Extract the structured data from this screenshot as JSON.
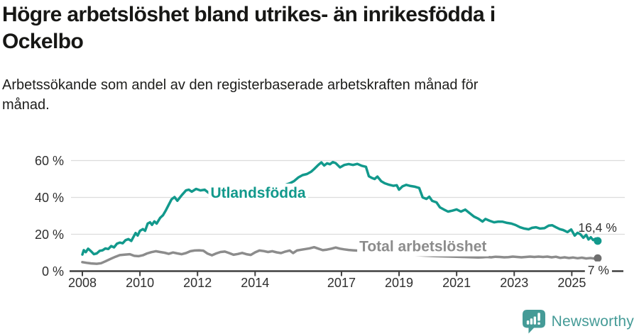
{
  "header": {
    "title": "Högre arbetslöshet bland utrikes- än inrikesfödda i\nOckelbo",
    "subtitle": "Arbetssökande som andel av den registerbaserade arbetskraften månad för\nmånad."
  },
  "footer": {
    "brand": "Newsworthy"
  },
  "colors": {
    "teal": "#12998c",
    "gray_line": "#8c8c8c",
    "gray_dot": "#6f6f6f",
    "grid": "#dcdcdc",
    "axis": "#404040",
    "tick_text": "#2e2e2e",
    "end_label_text": "#333333",
    "brand_teal": "#459b97"
  },
  "chart_data": {
    "type": "line",
    "title": "Högre arbetslöshet bland utrikes- än inrikesfödda i Ockelbo",
    "subtitle": "Arbetssökande som andel av den registerbaserade arbetskraften månad för månad.",
    "ylabel": "",
    "xlabel": "",
    "ylim": [
      0,
      65
    ],
    "x_range": [
      2008,
      2025.9
    ],
    "grid": "horizontal",
    "y_ticks": [
      {
        "value": 0,
        "label": "0 %"
      },
      {
        "value": 20,
        "label": "20 %"
      },
      {
        "value": 40,
        "label": "40 %"
      },
      {
        "value": 60,
        "label": "60 %"
      }
    ],
    "x_ticks": [
      {
        "value": 2008,
        "label": "2008"
      },
      {
        "value": 2010,
        "label": "2010"
      },
      {
        "value": 2012,
        "label": "2012"
      },
      {
        "value": 2014,
        "label": "2014"
      },
      {
        "value": 2017,
        "label": "2017"
      },
      {
        "value": 2019,
        "label": "2019"
      },
      {
        "value": 2021,
        "label": "2021"
      },
      {
        "value": 2023,
        "label": "2023"
      },
      {
        "value": 2025,
        "label": "2025"
      }
    ],
    "series": [
      {
        "id": "utlandsfodda",
        "name": "Utlandsfödda",
        "color": "#12998c",
        "dot_color": "#12998c",
        "end_label": "16,4 %",
        "end_label_pos": "above",
        "label_anchor": {
          "year": 2012.45,
          "value": 42.5
        },
        "points": [
          [
            2008.0,
            9.0
          ],
          [
            2008.05,
            11.4
          ],
          [
            2008.12,
            10.3
          ],
          [
            2008.2,
            12.2
          ],
          [
            2008.3,
            10.8
          ],
          [
            2008.4,
            9.2
          ],
          [
            2008.5,
            9.6
          ],
          [
            2008.6,
            11.0
          ],
          [
            2008.7,
            11.3
          ],
          [
            2008.8,
            12.3
          ],
          [
            2008.9,
            12.0
          ],
          [
            2009.0,
            13.6
          ],
          [
            2009.1,
            12.9
          ],
          [
            2009.2,
            14.9
          ],
          [
            2009.3,
            15.5
          ],
          [
            2009.4,
            15.1
          ],
          [
            2009.5,
            16.8
          ],
          [
            2009.6,
            17.4
          ],
          [
            2009.7,
            16.4
          ],
          [
            2009.8,
            19.3
          ],
          [
            2009.85,
            20.7
          ],
          [
            2009.92,
            19.3
          ],
          [
            2010.0,
            21.9
          ],
          [
            2010.1,
            22.8
          ],
          [
            2010.18,
            21.9
          ],
          [
            2010.27,
            25.8
          ],
          [
            2010.35,
            26.5
          ],
          [
            2010.42,
            25.1
          ],
          [
            2010.5,
            27.0
          ],
          [
            2010.58,
            25.8
          ],
          [
            2010.7,
            28.9
          ],
          [
            2010.8,
            30.3
          ],
          [
            2010.9,
            33.0
          ],
          [
            2011.0,
            36.0
          ],
          [
            2011.1,
            39.0
          ],
          [
            2011.2,
            40.2
          ],
          [
            2011.3,
            38.2
          ],
          [
            2011.45,
            41.2
          ],
          [
            2011.6,
            43.8
          ],
          [
            2011.7,
            44.2
          ],
          [
            2011.8,
            43.1
          ],
          [
            2011.95,
            44.6
          ],
          [
            2012.1,
            43.8
          ],
          [
            2012.25,
            44.2
          ],
          [
            2012.4,
            42.3
          ],
          [
            2012.55,
            43.5
          ],
          [
            2012.7,
            42.2
          ],
          [
            2012.9,
            43.5
          ],
          [
            2013.1,
            44.6
          ],
          [
            2013.3,
            43.6
          ],
          [
            2013.5,
            42.4
          ],
          [
            2013.7,
            41.2
          ],
          [
            2013.9,
            41.8
          ],
          [
            2014.1,
            43.0
          ],
          [
            2014.3,
            42.2
          ],
          [
            2014.5,
            43.3
          ],
          [
            2014.7,
            44.4
          ],
          [
            2014.9,
            45.6
          ],
          [
            2015.05,
            46.8
          ],
          [
            2015.2,
            47.6
          ],
          [
            2015.35,
            48.8
          ],
          [
            2015.5,
            50.8
          ],
          [
            2015.65,
            52.1
          ],
          [
            2015.8,
            52.7
          ],
          [
            2015.95,
            54.0
          ],
          [
            2016.05,
            55.4
          ],
          [
            2016.2,
            57.7
          ],
          [
            2016.3,
            59.0
          ],
          [
            2016.4,
            57.3
          ],
          [
            2016.5,
            58.5
          ],
          [
            2016.6,
            58.0
          ],
          [
            2016.7,
            59.2
          ],
          [
            2016.8,
            58.6
          ],
          [
            2016.95,
            56.3
          ],
          [
            2017.1,
            57.6
          ],
          [
            2017.25,
            58.1
          ],
          [
            2017.4,
            57.6
          ],
          [
            2017.55,
            58.2
          ],
          [
            2017.7,
            57.2
          ],
          [
            2017.85,
            56.6
          ],
          [
            2017.95,
            51.5
          ],
          [
            2018.05,
            50.6
          ],
          [
            2018.15,
            50.0
          ],
          [
            2018.25,
            51.3
          ],
          [
            2018.38,
            48.8
          ],
          [
            2018.5,
            47.7
          ],
          [
            2018.65,
            46.9
          ],
          [
            2018.8,
            46.3
          ],
          [
            2018.92,
            46.6
          ],
          [
            2019.0,
            44.2
          ],
          [
            2019.12,
            46.0
          ],
          [
            2019.25,
            46.8
          ],
          [
            2019.4,
            46.2
          ],
          [
            2019.55,
            45.8
          ],
          [
            2019.7,
            45.1
          ],
          [
            2019.82,
            40.0
          ],
          [
            2019.95,
            39.2
          ],
          [
            2020.05,
            40.4
          ],
          [
            2020.15,
            38.1
          ],
          [
            2020.3,
            37.3
          ],
          [
            2020.42,
            34.6
          ],
          [
            2020.55,
            33.5
          ],
          [
            2020.7,
            32.3
          ],
          [
            2020.85,
            32.8
          ],
          [
            2021.0,
            33.5
          ],
          [
            2021.15,
            32.3
          ],
          [
            2021.3,
            33.4
          ],
          [
            2021.45,
            31.5
          ],
          [
            2021.6,
            29.6
          ],
          [
            2021.75,
            28.5
          ],
          [
            2021.9,
            26.9
          ],
          [
            2022.0,
            28.3
          ],
          [
            2022.15,
            27.3
          ],
          [
            2022.3,
            26.5
          ],
          [
            2022.45,
            26.9
          ],
          [
            2022.6,
            26.8
          ],
          [
            2022.75,
            26.2
          ],
          [
            2022.9,
            25.8
          ],
          [
            2023.05,
            25.0
          ],
          [
            2023.2,
            23.8
          ],
          [
            2023.35,
            23.1
          ],
          [
            2023.5,
            22.7
          ],
          [
            2023.62,
            23.5
          ],
          [
            2023.75,
            23.8
          ],
          [
            2023.9,
            23.1
          ],
          [
            2024.05,
            23.3
          ],
          [
            2024.2,
            24.7
          ],
          [
            2024.32,
            24.9
          ],
          [
            2024.45,
            23.8
          ],
          [
            2024.58,
            22.8
          ],
          [
            2024.7,
            22.3
          ],
          [
            2024.85,
            21.2
          ],
          [
            2024.98,
            22.6
          ],
          [
            2025.1,
            19.3
          ],
          [
            2025.2,
            20.8
          ],
          [
            2025.3,
            20.0
          ],
          [
            2025.4,
            18.1
          ],
          [
            2025.5,
            19.7
          ],
          [
            2025.58,
            17.2
          ],
          [
            2025.66,
            18.4
          ],
          [
            2025.74,
            16.9
          ],
          [
            2025.82,
            17.6
          ],
          [
            2025.9,
            16.4
          ]
        ]
      },
      {
        "id": "total",
        "name": "Total arbetslöshet",
        "color": "#8c8c8c",
        "dot_color": "#6f6f6f",
        "end_label": "7 %",
        "end_label_pos": "below",
        "label_anchor": {
          "year": 2017.62,
          "value": 13.4
        },
        "points": [
          [
            2008.0,
            4.9
          ],
          [
            2008.15,
            4.5
          ],
          [
            2008.3,
            4.2
          ],
          [
            2008.5,
            4.0
          ],
          [
            2008.65,
            4.3
          ],
          [
            2008.8,
            5.3
          ],
          [
            2009.0,
            6.8
          ],
          [
            2009.15,
            7.8
          ],
          [
            2009.3,
            8.7
          ],
          [
            2009.5,
            9.0
          ],
          [
            2009.65,
            9.2
          ],
          [
            2009.8,
            8.3
          ],
          [
            2009.95,
            8.1
          ],
          [
            2010.1,
            8.6
          ],
          [
            2010.25,
            9.6
          ],
          [
            2010.4,
            10.3
          ],
          [
            2010.55,
            10.8
          ],
          [
            2010.7,
            10.4
          ],
          [
            2010.85,
            10.0
          ],
          [
            2011.0,
            9.4
          ],
          [
            2011.15,
            10.1
          ],
          [
            2011.3,
            9.6
          ],
          [
            2011.45,
            9.2
          ],
          [
            2011.6,
            9.8
          ],
          [
            2011.75,
            10.8
          ],
          [
            2011.9,
            11.2
          ],
          [
            2012.05,
            11.3
          ],
          [
            2012.2,
            11.1
          ],
          [
            2012.35,
            9.5
          ],
          [
            2012.5,
            8.6
          ],
          [
            2012.65,
            9.6
          ],
          [
            2012.8,
            10.4
          ],
          [
            2012.95,
            10.6
          ],
          [
            2013.1,
            9.8
          ],
          [
            2013.25,
            8.9
          ],
          [
            2013.4,
            9.3
          ],
          [
            2013.55,
            9.9
          ],
          [
            2013.7,
            9.2
          ],
          [
            2013.85,
            8.8
          ],
          [
            2014.0,
            10.2
          ],
          [
            2014.15,
            11.2
          ],
          [
            2014.3,
            10.9
          ],
          [
            2014.45,
            10.4
          ],
          [
            2014.6,
            10.8
          ],
          [
            2014.75,
            10.2
          ],
          [
            2014.9,
            9.8
          ],
          [
            2015.05,
            10.6
          ],
          [
            2015.2,
            11.2
          ],
          [
            2015.32,
            9.8
          ],
          [
            2015.45,
            11.2
          ],
          [
            2015.6,
            11.6
          ],
          [
            2015.75,
            12.0
          ],
          [
            2015.9,
            12.4
          ],
          [
            2016.05,
            13.0
          ],
          [
            2016.2,
            12.2
          ],
          [
            2016.35,
            11.4
          ],
          [
            2016.5,
            11.7
          ],
          [
            2016.65,
            12.2
          ],
          [
            2016.8,
            12.8
          ],
          [
            2016.95,
            12.2
          ],
          [
            2017.1,
            11.8
          ],
          [
            2017.25,
            11.5
          ],
          [
            2017.4,
            11.3
          ],
          [
            2017.7,
            11.0
          ],
          [
            2018.0,
            10.6
          ],
          [
            2018.3,
            10.2
          ],
          [
            2018.6,
            9.8
          ],
          [
            2019.0,
            9.3
          ],
          [
            2019.4,
            8.9
          ],
          [
            2019.8,
            8.5
          ],
          [
            2020.2,
            8.2
          ],
          [
            2020.6,
            8.0
          ],
          [
            2021.0,
            7.8
          ],
          [
            2021.4,
            7.6
          ],
          [
            2021.75,
            7.4
          ],
          [
            2021.9,
            7.5
          ],
          [
            2022.05,
            7.7
          ],
          [
            2022.2,
            7.5
          ],
          [
            2022.35,
            7.8
          ],
          [
            2022.5,
            7.7
          ],
          [
            2022.65,
            7.5
          ],
          [
            2022.8,
            7.6
          ],
          [
            2022.95,
            7.9
          ],
          [
            2023.1,
            7.7
          ],
          [
            2023.25,
            7.5
          ],
          [
            2023.4,
            7.7
          ],
          [
            2023.55,
            7.9
          ],
          [
            2023.7,
            7.7
          ],
          [
            2023.85,
            7.9
          ],
          [
            2024.0,
            7.7
          ],
          [
            2024.15,
            7.9
          ],
          [
            2024.3,
            7.5
          ],
          [
            2024.45,
            7.8
          ],
          [
            2024.6,
            7.2
          ],
          [
            2024.75,
            7.5
          ],
          [
            2024.9,
            7.1
          ],
          [
            2025.05,
            7.4
          ],
          [
            2025.2,
            7.0
          ],
          [
            2025.35,
            7.3
          ],
          [
            2025.5,
            6.9
          ],
          [
            2025.65,
            7.1
          ],
          [
            2025.78,
            6.8
          ],
          [
            2025.9,
            7.0
          ]
        ]
      }
    ]
  }
}
